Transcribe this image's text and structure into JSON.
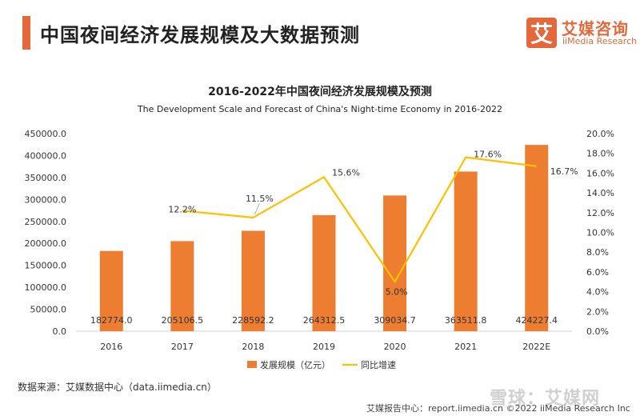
{
  "header": {
    "title": "中国夜间经济发展规模及大数据预测",
    "logo_glyph": "艾",
    "logo_cn": "艾媒咨询",
    "logo_en": "iiMedia Research"
  },
  "chart_data": {
    "type": "bar",
    "title": "2016-2022年中国夜间经济发展规模及预测",
    "subtitle": "The Development Scale and Forecast of China's Night-time Economy in 2016-2022",
    "categories": [
      "2016",
      "2017",
      "2018",
      "2019",
      "2020",
      "2021",
      "2022E"
    ],
    "series": [
      {
        "name": "发展规模（亿元）",
        "type": "bar",
        "axis": "left",
        "color": "#ed7d31",
        "values": [
          182774.0,
          205106.5,
          228592.2,
          264312.5,
          309034.7,
          363511.8,
          424227.4
        ],
        "labels": [
          "182774.0",
          "205106.5",
          "228592.2",
          "264312.5",
          "309034.7",
          "363511.8",
          "424227.4"
        ]
      },
      {
        "name": "同比增速",
        "type": "line",
        "axis": "right",
        "color": "#ffc000",
        "values": [
          null,
          12.2,
          11.5,
          15.6,
          5.0,
          17.6,
          16.7
        ],
        "labels": [
          "",
          "12.2%",
          "11.5%",
          "15.6%",
          "5.0%",
          "17.6%",
          "16.7%"
        ]
      }
    ],
    "y_left": {
      "min": 0,
      "max": 450000,
      "ticks": [
        "0.0",
        "50000.0",
        "100000.0",
        "150000.0",
        "200000.0",
        "250000.0",
        "300000.0",
        "350000.0",
        "400000.0",
        "450000.0"
      ]
    },
    "y_right": {
      "min": 0,
      "max": 20,
      "ticks": [
        "0.0%",
        "2.0%",
        "4.0%",
        "6.0%",
        "8.0%",
        "10.0%",
        "12.0%",
        "14.0%",
        "16.0%",
        "18.0%",
        "20.0%"
      ]
    },
    "grid": false,
    "legend_position": "bottom"
  },
  "footer": {
    "source": "数据来源：艾媒数据中心（data.iimedia.cn）",
    "report_line": "艾媒报告中心：report.iimedia.cn ©2022 iiMedia Research Inc",
    "watermark": "雪球：艾媒网"
  }
}
